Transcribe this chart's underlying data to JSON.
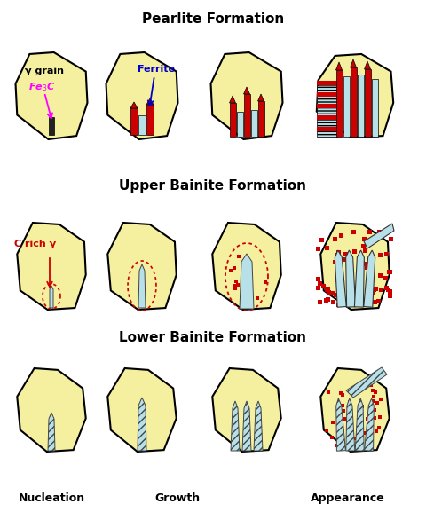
{
  "title_pearlite": "Pearlite Formation",
  "title_upper": "Upper Bainite Formation",
  "title_lower": "Lower Bainite Formation",
  "label_nucleation": "Nucleation",
  "label_growth": "Growth",
  "label_appearance": "Appearance",
  "label_gamma_grain": "γ grain",
  "label_fe3c": "Fe",
  "label_fe3c_sub": "3",
  "label_fe3c_end": "C",
  "label_ferrite": "Ferrite",
  "label_c_rich": "C rich γ",
  "grain_fill": "#F5F0A0",
  "grain_edge": "#000000",
  "red_color": "#CC0000",
  "blue_color": "#0000CC",
  "magenta_color": "#FF00FF",
  "light_blue": "#B8E0E8",
  "dot_color": "#CC0000",
  "white_bg": "#FFFFFF",
  "dark_bar": "#222222"
}
